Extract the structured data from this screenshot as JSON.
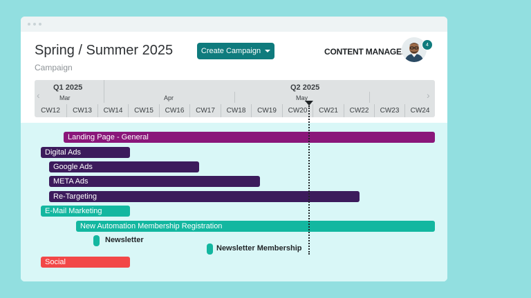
{
  "header": {
    "title": "Spring / Summer 2025",
    "subtitle": "Campaign",
    "create_button": "Create Campaign",
    "role": "CONTENT MANAGER",
    "notification_count": "4"
  },
  "timeline": {
    "quarters": [
      "Q1 2025",
      "Q2 2025"
    ],
    "months": [
      "Mar",
      "Apr",
      "May"
    ],
    "weeks": [
      "CW12",
      "CW13",
      "CW14",
      "CW15",
      "CW16",
      "CW17",
      "CW18",
      "CW19",
      "CW20",
      "CW21",
      "CW22",
      "CW23",
      "CW24"
    ],
    "current_week": "CW21"
  },
  "tasks": [
    {
      "label": "Landing Page - General",
      "color": "#8a177a",
      "start_week": "CW13",
      "end_week": "CW24"
    },
    {
      "label": "Digital Ads",
      "color": "#3c1b5c",
      "start_week": "CW12",
      "end_week": "CW14"
    },
    {
      "label": "Google Ads",
      "color": "#3c1b5c",
      "start_week": "CW12",
      "end_week": "CW16"
    },
    {
      "label": "META Ads",
      "color": "#3c1b5c",
      "start_week": "CW12",
      "end_week": "CW19"
    },
    {
      "label": "Re-Targeting",
      "color": "#3c1b5c",
      "start_week": "CW12",
      "end_week": "CW22"
    },
    {
      "label": "E-Mail Marketing",
      "color": "#13b7a0",
      "start_week": "CW12",
      "end_week": "CW14"
    },
    {
      "label": "New Automation Membership Registration",
      "color": "#13b7a0",
      "start_week": "CW13",
      "end_week": "CW24"
    },
    {
      "label": "Social",
      "color": "#f24848",
      "start_week": "CW12",
      "end_week": "CW14"
    }
  ],
  "milestones": [
    {
      "label": "Newsletter",
      "color": "#13b7a0",
      "week": "CW13"
    },
    {
      "label": "Newsletter Membership",
      "color": "#13b7a0",
      "week": "CW17"
    }
  ],
  "icons": {
    "dropdown": "caret-down-icon",
    "prev": "chevron-left-icon",
    "next": "chevron-right-icon",
    "today_marker": "triangle-down-icon"
  }
}
